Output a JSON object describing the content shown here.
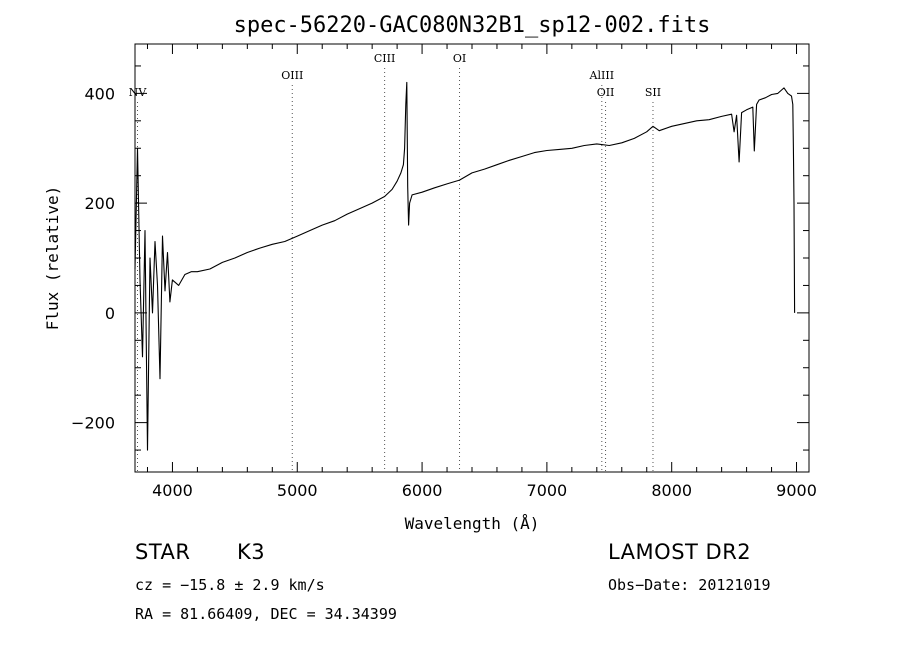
{
  "chart_data": {
    "type": "line",
    "title": "spec-56220-GAC080N32B1_sp12-002.fits",
    "xlabel": "Wavelength (Å)",
    "ylabel": "Flux (relative)",
    "xlim": [
      3700,
      9100
    ],
    "ylim": [
      -290,
      490
    ],
    "xticks": [
      4000,
      5000,
      6000,
      7000,
      8000,
      9000
    ],
    "xtick_labels": [
      "4000",
      "5000",
      "6000",
      "7000",
      "8000",
      "9000"
    ],
    "yticks": [
      -200,
      0,
      200,
      400
    ],
    "ytick_labels": [
      "−200",
      "0",
      "200",
      "400"
    ],
    "grid": false,
    "series": [
      {
        "x": [
          3700,
          3720,
          3740,
          3760,
          3780,
          3800,
          3820,
          3840,
          3860,
          3880,
          3900,
          3920,
          3940,
          3960,
          3980,
          4000,
          4050,
          4100,
          4150,
          4200,
          4300,
          4400,
          4500,
          4600,
          4700,
          4800,
          4900,
          5000,
          5100,
          5200,
          5300,
          5400,
          5500,
          5600,
          5700,
          5760,
          5800,
          5830,
          5850,
          5860,
          5870,
          5878,
          5885,
          5892,
          5900,
          5920,
          6000,
          6100,
          6200,
          6300,
          6400,
          6500,
          6600,
          6700,
          6800,
          6900,
          7000,
          7100,
          7200,
          7300,
          7400,
          7500,
          7600,
          7700,
          7800,
          7850,
          7900,
          8000,
          8100,
          8200,
          8300,
          8400,
          8480,
          8500,
          8520,
          8540,
          8560,
          8600,
          8650,
          8662,
          8680,
          8700,
          8750,
          8800,
          8850,
          8900,
          8930,
          8960,
          8970,
          8975,
          8980,
          8985
        ],
        "y": [
          80,
          300,
          60,
          -80,
          150,
          -250,
          100,
          0,
          130,
          50,
          -120,
          140,
          40,
          110,
          20,
          60,
          50,
          70,
          75,
          75,
          80,
          92,
          100,
          110,
          118,
          125,
          130,
          140,
          150,
          160,
          168,
          180,
          190,
          200,
          212,
          225,
          240,
          255,
          270,
          300,
          380,
          420,
          230,
          160,
          200,
          215,
          220,
          228,
          235,
          242,
          255,
          262,
          270,
          278,
          285,
          292,
          296,
          298,
          300,
          305,
          308,
          305,
          310,
          318,
          330,
          340,
          332,
          340,
          345,
          350,
          352,
          358,
          362,
          330,
          360,
          275,
          365,
          370,
          375,
          295,
          380,
          388,
          392,
          398,
          400,
          410,
          400,
          395,
          380,
          300,
          200,
          0
        ]
      }
    ],
    "line_markers": [
      {
        "label": "NV",
        "x": 3720,
        "row": 3
      },
      {
        "label": "OIII",
        "x": 4960,
        "row": 2
      },
      {
        "label": "CIII",
        "x": 5700,
        "row": 1
      },
      {
        "label": "OI",
        "x": 6300,
        "row": 1
      },
      {
        "label": "AlIII",
        "x": 7440,
        "row": 2
      },
      {
        "label": "OII",
        "x": 7470,
        "row": 3
      },
      {
        "label": "SII",
        "x": 7850,
        "row": 3
      }
    ]
  },
  "info": {
    "object_type": "STAR",
    "subclass": "K3",
    "survey": "LAMOST DR2",
    "cz": "cz = −15.8 ± 2.9 km/s",
    "obs_date": "Obs−Date: 20121019",
    "coords": "RA =  81.66409, DEC =  34.34399"
  }
}
